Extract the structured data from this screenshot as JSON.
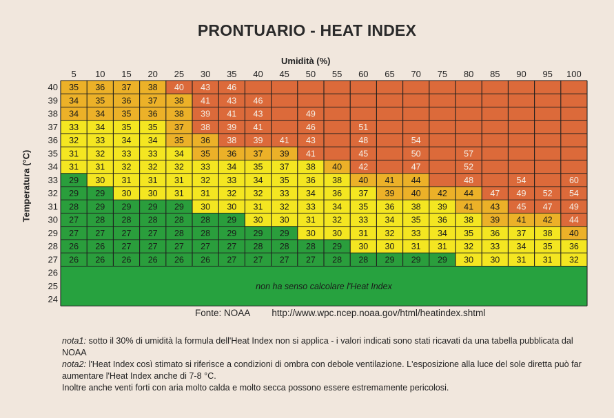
{
  "title": "PRONTUARIO - HEAT INDEX",
  "chart_data": {
    "type": "heatmap",
    "title": "PRONTUARIO - HEAT INDEX",
    "xlabel": "Umidità (%)",
    "ylabel": "Temperatura (°C)",
    "x": [
      5,
      10,
      15,
      20,
      25,
      30,
      35,
      40,
      45,
      50,
      55,
      60,
      65,
      70,
      75,
      80,
      85,
      90,
      95,
      100
    ],
    "y": [
      40,
      39,
      38,
      37,
      36,
      35,
      34,
      33,
      32,
      31,
      30,
      29,
      28,
      27,
      26,
      25,
      24
    ],
    "rows": [
      [
        35,
        36,
        37,
        38,
        40,
        43,
        46,
        null,
        null,
        null,
        null,
        null,
        null,
        null,
        null,
        null,
        null,
        null,
        null,
        null
      ],
      [
        34,
        35,
        36,
        37,
        38,
        41,
        43,
        46,
        null,
        null,
        null,
        null,
        null,
        null,
        null,
        null,
        null,
        null,
        null,
        null
      ],
      [
        34,
        34,
        35,
        36,
        38,
        39,
        41,
        43,
        null,
        49,
        null,
        null,
        null,
        null,
        null,
        null,
        null,
        null,
        null,
        null
      ],
      [
        33,
        34,
        35,
        35,
        37,
        38,
        39,
        41,
        null,
        46,
        null,
        51,
        null,
        null,
        null,
        null,
        null,
        null,
        null,
        null
      ],
      [
        32,
        33,
        34,
        34,
        35,
        36,
        38,
        39,
        41,
        43,
        null,
        48,
        null,
        54,
        null,
        null,
        null,
        null,
        null,
        null
      ],
      [
        31,
        32,
        33,
        33,
        34,
        35,
        36,
        37,
        39,
        41,
        null,
        45,
        null,
        50,
        null,
        57,
        null,
        null,
        null,
        null
      ],
      [
        31,
        31,
        32,
        32,
        32,
        33,
        34,
        35,
        37,
        38,
        40,
        42,
        null,
        47,
        null,
        52,
        null,
        null,
        null,
        null
      ],
      [
        29,
        30,
        31,
        31,
        31,
        32,
        33,
        34,
        35,
        36,
        38,
        40,
        41,
        44,
        null,
        48,
        null,
        54,
        null,
        60
      ],
      [
        29,
        29,
        30,
        30,
        31,
        31,
        32,
        32,
        33,
        34,
        36,
        37,
        39,
        40,
        42,
        44,
        47,
        49,
        52,
        54
      ],
      [
        28,
        29,
        29,
        29,
        29,
        30,
        30,
        31,
        32,
        33,
        34,
        35,
        36,
        38,
        39,
        41,
        43,
        45,
        47,
        49
      ],
      [
        27,
        28,
        28,
        28,
        28,
        28,
        29,
        30,
        30,
        31,
        32,
        33,
        34,
        35,
        36,
        38,
        39,
        41,
        42,
        44
      ],
      [
        27,
        27,
        27,
        27,
        28,
        28,
        29,
        29,
        29,
        30,
        30,
        31,
        32,
        33,
        34,
        35,
        36,
        37,
        38,
        40
      ],
      [
        26,
        26,
        27,
        27,
        27,
        27,
        27,
        28,
        28,
        28,
        29,
        30,
        30,
        31,
        31,
        32,
        33,
        34,
        35,
        36
      ],
      [
        26,
        26,
        26,
        26,
        26,
        26,
        27,
        27,
        27,
        27,
        28,
        28,
        29,
        29,
        29,
        30,
        30,
        31,
        31,
        32
      ]
    ],
    "zones": [
      [
        3,
        3,
        3,
        3,
        4,
        4,
        4,
        4,
        4,
        4,
        4,
        4,
        4,
        4,
        4,
        4,
        4,
        4,
        4,
        4
      ],
      [
        3,
        3,
        3,
        3,
        3,
        4,
        4,
        4,
        4,
        4,
        4,
        4,
        4,
        4,
        4,
        4,
        4,
        4,
        4,
        4
      ],
      [
        3,
        3,
        3,
        3,
        3,
        4,
        4,
        4,
        4,
        4,
        4,
        4,
        4,
        4,
        4,
        4,
        4,
        4,
        4,
        4
      ],
      [
        2,
        2,
        2,
        2,
        3,
        4,
        4,
        4,
        4,
        4,
        4,
        4,
        4,
        4,
        4,
        4,
        4,
        4,
        4,
        4
      ],
      [
        2,
        2,
        2,
        2,
        3,
        3,
        4,
        4,
        4,
        4,
        4,
        4,
        4,
        4,
        4,
        4,
        4,
        4,
        4,
        4
      ],
      [
        2,
        2,
        2,
        2,
        2,
        3,
        3,
        3,
        3,
        4,
        4,
        4,
        4,
        4,
        4,
        4,
        4,
        4,
        4,
        4
      ],
      [
        2,
        2,
        2,
        2,
        2,
        2,
        2,
        2,
        2,
        2,
        3,
        4,
        4,
        4,
        4,
        4,
        4,
        4,
        4,
        4
      ],
      [
        1,
        2,
        2,
        2,
        2,
        2,
        2,
        2,
        2,
        2,
        2,
        3,
        3,
        3,
        4,
        4,
        4,
        4,
        4,
        4
      ],
      [
        1,
        1,
        2,
        2,
        2,
        2,
        2,
        2,
        2,
        2,
        2,
        2,
        3,
        3,
        3,
        3,
        4,
        4,
        4,
        4
      ],
      [
        1,
        1,
        1,
        1,
        1,
        2,
        2,
        2,
        2,
        2,
        2,
        2,
        2,
        2,
        2,
        3,
        3,
        4,
        4,
        4
      ],
      [
        1,
        1,
        1,
        1,
        1,
        1,
        1,
        2,
        2,
        2,
        2,
        2,
        2,
        2,
        2,
        2,
        3,
        3,
        3,
        4
      ],
      [
        1,
        1,
        1,
        1,
        1,
        1,
        1,
        1,
        1,
        2,
        2,
        2,
        2,
        2,
        2,
        2,
        2,
        2,
        2,
        3
      ],
      [
        1,
        1,
        1,
        1,
        1,
        1,
        1,
        1,
        1,
        1,
        1,
        2,
        2,
        2,
        2,
        2,
        2,
        2,
        2,
        2
      ],
      [
        1,
        1,
        1,
        1,
        1,
        1,
        1,
        1,
        1,
        1,
        1,
        1,
        1,
        1,
        1,
        2,
        2,
        2,
        2,
        2
      ]
    ],
    "zone_colors": {
      "1": "#2a9e3c",
      "2": "#f4e621",
      "3": "#ecb128",
      "4": "#dc6a3a",
      "below": "#27a23f"
    },
    "below_threshold_note": "non ha senso calcolare l'Heat Index",
    "grid": true
  },
  "source": {
    "label": "Fonte: NOAA",
    "url": "http://www.wpc.ncep.noaa.gov/html/heatindex.shtml"
  },
  "notes": {
    "nota1_label": "nota1:",
    "nota1_text": " sotto il 30% di umidità la formula dell'Heat Index non si applica - i valori indicati sono stati ricavati da una tabella pubblicata dal NOAA",
    "nota2_label": "nota2:",
    "nota2_text": " l'Heat Index così stimato si riferisce a condizioni di ombra con debole ventilazione. L'esposizione alla luce del sole diretta può far aumentare l'Heat Index anche di 7-8 °C.",
    "line3": "Inoltre anche venti forti con aria molto calda e molto secca possono essere estremamente pericolosi."
  }
}
